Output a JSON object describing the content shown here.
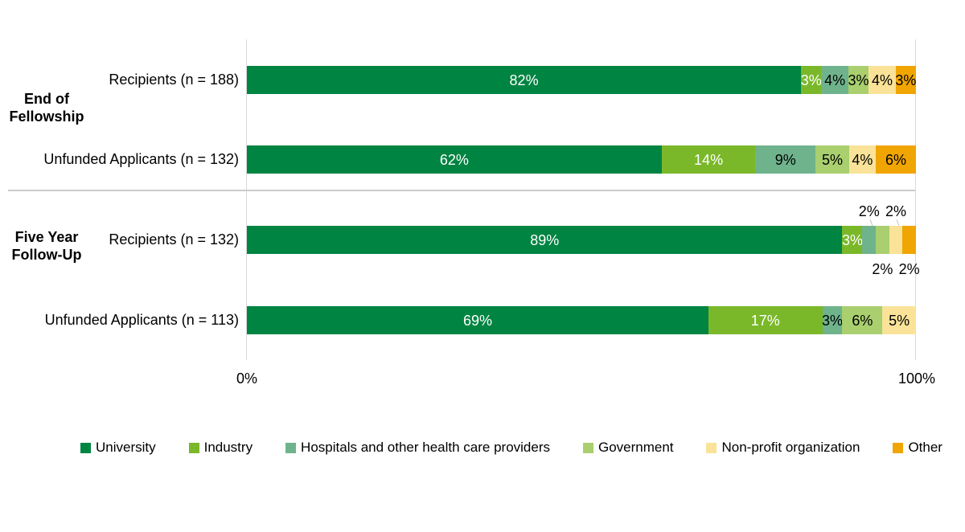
{
  "background": "#FFFFFF",
  "x_axis": {
    "min_label": "0%",
    "max_label": "100%"
  },
  "chart_data": {
    "type": "bar",
    "subtype": "horizontal-stacked-100-percent",
    "x_axis": {
      "min_label": "0%",
      "max_label": "100%",
      "range": [
        0,
        100
      ]
    },
    "grid": "vertical-lines-at-0-and-100-only",
    "legend_position": "bottom",
    "series": [
      {
        "name": "University",
        "color": "#008442",
        "label_color": "#FFFFFF"
      },
      {
        "name": "Industry",
        "color": "#7AB82A",
        "label_color": "#FFFFFF"
      },
      {
        "name": "Hospitals and other health care providers",
        "color": "#6FB38C",
        "label_color": "#000000"
      },
      {
        "name": "Government",
        "color": "#A9CF6F",
        "label_color": "#000000"
      },
      {
        "name": "Non-profit organization",
        "color": "#FAE398",
        "label_color": "#000000"
      },
      {
        "name": "Other",
        "color": "#F0A502",
        "label_color": "#000000"
      }
    ],
    "groups": [
      {
        "label": "End of Fellowship",
        "label_lines": [
          "End of",
          "Fellowship"
        ],
        "rows": [
          {
            "label": "Recipients (n = 188)",
            "values": [
              82,
              3,
              4,
              3,
              4,
              3
            ],
            "labels": [
              "82%",
              "3%",
              "4%",
              "3%",
              "4%",
              "3%"
            ],
            "placement": [
              "inside",
              "inside",
              "inside",
              "inside",
              "inside",
              "inside"
            ]
          },
          {
            "label": "Unfunded Applicants (n = 132)",
            "values": [
              62,
              14,
              9,
              5,
              4,
              6
            ],
            "labels": [
              "62%",
              "14%",
              "9%",
              "5%",
              "4%",
              "6%"
            ],
            "placement": [
              "inside",
              "inside",
              "inside",
              "inside",
              "inside",
              "inside"
            ]
          }
        ]
      },
      {
        "label": "Five Year Follow-Up",
        "label_lines": [
          "Five Year",
          "Follow-Up"
        ],
        "rows": [
          {
            "label": "Recipients (n = 132)",
            "values": [
              89,
              3,
              2,
              2,
              2,
              2
            ],
            "labels": [
              "89%",
              "3%",
              "2%",
              "2%",
              "2%",
              "2%"
            ],
            "placement": [
              "inside",
              "inside",
              "above",
              "below",
              "above",
              "below"
            ]
          },
          {
            "label": "Unfunded Applicants (n = 113)",
            "values": [
              69,
              17,
              3,
              6,
              5,
              0
            ],
            "labels": [
              "69%",
              "17%",
              "3%",
              "6%",
              "5%",
              ""
            ],
            "placement": [
              "inside",
              "inside",
              "inside",
              "inside",
              "inside",
              "none"
            ]
          }
        ]
      }
    ]
  }
}
